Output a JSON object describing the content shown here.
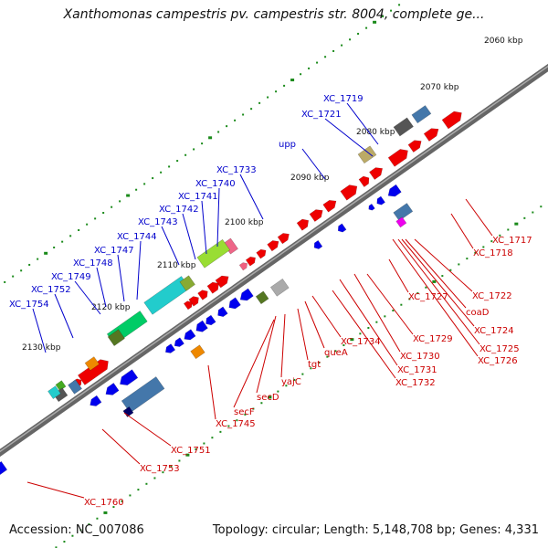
{
  "title": "Xanthomonas campestris pv. campestris str. 8004, complete ge...",
  "footer": {
    "accession": "Accession: NC_007086",
    "topology": "Topology: circular; Length: 5,148,708 bp; Genes: 4,331"
  },
  "colors": {
    "backbone": "#777777",
    "tick": "#1a8a1a",
    "forward_label": "#0000cc",
    "reverse_label": "#cc0000"
  },
  "kbp_ticks": [
    {
      "label": "2060 kbp"
    },
    {
      "label": "2070 kbp"
    },
    {
      "label": "2080 kbp"
    },
    {
      "label": "2090 kbp"
    },
    {
      "label": "2100 kbp"
    },
    {
      "label": "2110 kbp"
    },
    {
      "label": "2120 kbp"
    },
    {
      "label": "2130 kbp"
    }
  ],
  "forward_gene_labels": [
    {
      "text": "XC_1719"
    },
    {
      "text": "XC_1721"
    },
    {
      "text": "upp"
    },
    {
      "text": "XC_1733"
    },
    {
      "text": "XC_1740"
    },
    {
      "text": "XC_1741"
    },
    {
      "text": "XC_1742"
    },
    {
      "text": "XC_1743"
    },
    {
      "text": "XC_1744"
    },
    {
      "text": "XC_1747"
    },
    {
      "text": "XC_1748"
    },
    {
      "text": "XC_1749"
    },
    {
      "text": "XC_1752"
    },
    {
      "text": "XC_1754"
    }
  ],
  "reverse_gene_labels": [
    {
      "text": "XC_1717"
    },
    {
      "text": "XC_1718"
    },
    {
      "text": "XC_1722"
    },
    {
      "text": "coaD"
    },
    {
      "text": "XC_1724"
    },
    {
      "text": "XC_1725"
    },
    {
      "text": "XC_1726"
    },
    {
      "text": "XC_1727"
    },
    {
      "text": "XC_1729"
    },
    {
      "text": "XC_1730"
    },
    {
      "text": "XC_1731"
    },
    {
      "text": "XC_1732"
    },
    {
      "text": "XC_1734"
    },
    {
      "text": "queA"
    },
    {
      "text": "tgt"
    },
    {
      "text": "yajC"
    },
    {
      "text": "secD"
    },
    {
      "text": "secF"
    },
    {
      "text": "XC_1745"
    },
    {
      "text": "XC_1751"
    },
    {
      "text": "XC_1753"
    },
    {
      "text": "XC_1760"
    }
  ],
  "genes": [
    {
      "strand": "+",
      "color": "#ee0000"
    },
    {
      "strand": "+",
      "color": "#ee0000"
    },
    {
      "strand": "+",
      "color": "#ee0000"
    },
    {
      "strand": "+",
      "color": "#ee0000"
    },
    {
      "strand": "+",
      "color": "#ee0000"
    },
    {
      "strand": "+",
      "color": "#ee0000"
    },
    {
      "strand": "+",
      "color": "#ee0000"
    },
    {
      "strand": "+",
      "color": "#ee0000"
    },
    {
      "strand": "+",
      "color": "#ee0000"
    },
    {
      "strand": "+",
      "color": "#ee0000"
    },
    {
      "strand": "+",
      "color": "#ee0000"
    },
    {
      "strand": "+",
      "color": "#ee0000"
    },
    {
      "strand": "+",
      "color": "#ee0000"
    },
    {
      "strand": "+",
      "color": "#ee0000"
    },
    {
      "strand": "+",
      "color": "#f06080"
    },
    {
      "strand": "+",
      "color": "#ee0000"
    },
    {
      "strand": "+",
      "color": "#ee0000"
    },
    {
      "strand": "+",
      "color": "#ee0000"
    },
    {
      "strand": "+",
      "color": "#ee0000"
    },
    {
      "strand": "+",
      "color": "#ee0000"
    },
    {
      "strand": "+",
      "color": "#ee0000"
    },
    {
      "strand": "+",
      "color": "#ee0000"
    },
    {
      "strand": "+",
      "color": "#ee0000"
    },
    {
      "strand": "+",
      "color": "#ee0000"
    },
    {
      "strand": "-",
      "color": "#0000ee"
    },
    {
      "strand": "-",
      "color": "#0000ee"
    },
    {
      "strand": "-",
      "color": "#0000ee"
    },
    {
      "strand": "-",
      "color": "#0000ee"
    },
    {
      "strand": "-",
      "color": "#0000ee"
    },
    {
      "strand": "-",
      "color": "#0000ee"
    },
    {
      "strand": "-",
      "color": "#0000ee"
    },
    {
      "strand": "-",
      "color": "#0000ee"
    },
    {
      "strand": "-",
      "color": "#0000ee"
    },
    {
      "strand": "-",
      "color": "#0000ee"
    },
    {
      "strand": "-",
      "color": "#0000ee"
    },
    {
      "strand": "-",
      "color": "#0000ee"
    },
    {
      "strand": "-",
      "color": "#0000ee"
    },
    {
      "strand": "-",
      "color": "#0000ee"
    },
    {
      "strand": "-",
      "color": "#0000ee"
    },
    {
      "strand": "-",
      "color": "#0000ee"
    },
    {
      "strand": "-",
      "color": "#0000ee"
    },
    {
      "strand": "-",
      "color": "#0000ee"
    },
    {
      "strand": "-",
      "color": "#0000ee"
    }
  ],
  "feature_boxes": [
    {
      "color": "#bbaa66"
    },
    {
      "color": "#555555"
    },
    {
      "color": "#4477aa"
    },
    {
      "color": "#4477aa"
    },
    {
      "color": "#ee00ee"
    },
    {
      "color": "#aaaaaa"
    },
    {
      "color": "#557722"
    },
    {
      "color": "#ee6688"
    },
    {
      "color": "#99dd33"
    },
    {
      "color": "#22cccc"
    },
    {
      "color": "#88aa33"
    },
    {
      "color": "#00cc66"
    },
    {
      "color": "#557722"
    },
    {
      "color": "#4477aa"
    },
    {
      "color": "#ee8800"
    },
    {
      "color": "#ee8800"
    },
    {
      "color": "#44aa22"
    },
    {
      "color": "#555555"
    },
    {
      "color": "#4477aa"
    },
    {
      "color": "#22cccc"
    },
    {
      "color": "#22cccc"
    },
    {
      "color": "#000066"
    }
  ]
}
